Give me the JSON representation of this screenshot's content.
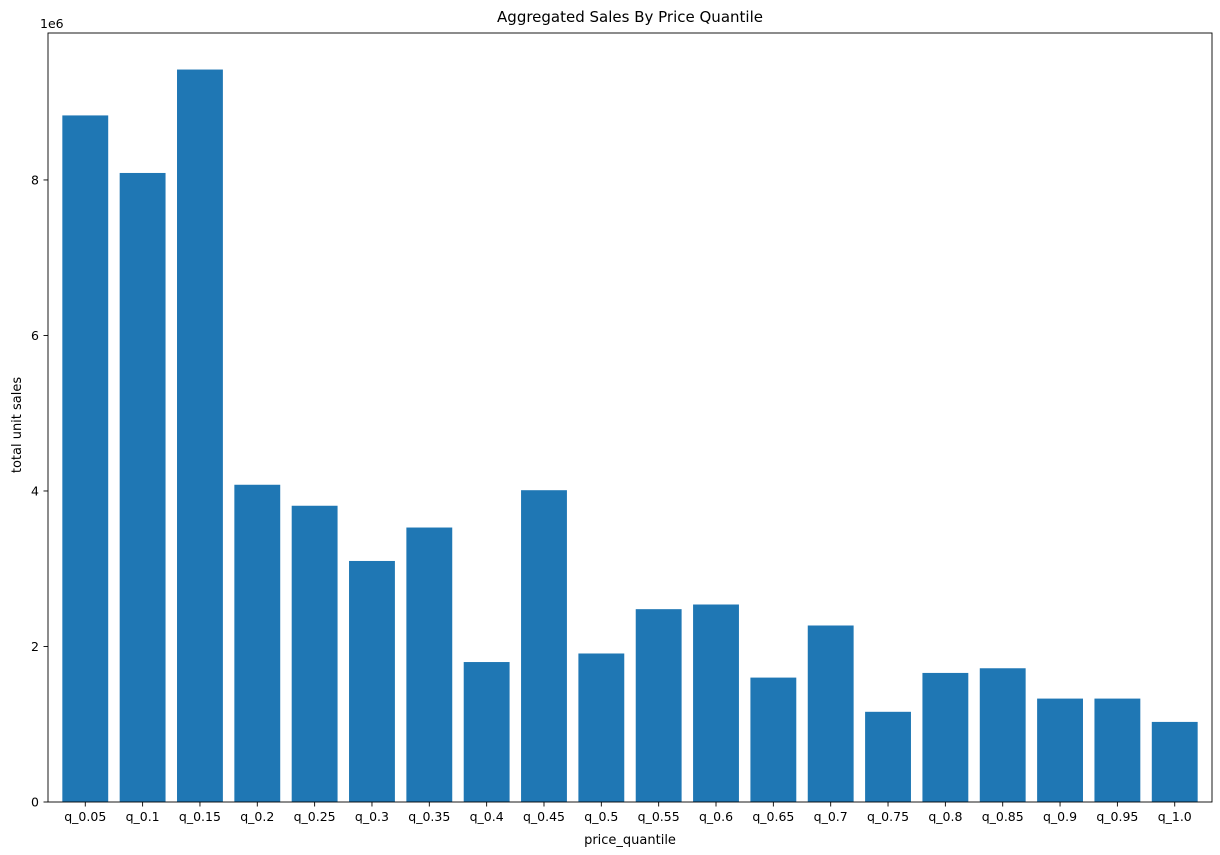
{
  "chart_data": {
    "type": "bar",
    "title": "Aggregated Sales By Price Quantile",
    "xlabel": "price_quantile",
    "ylabel": "total unit sales",
    "y_offset_label": "1e6",
    "categories": [
      "q_0.05",
      "q_0.1",
      "q_0.15",
      "q_0.2",
      "q_0.25",
      "q_0.3",
      "q_0.35",
      "q_0.4",
      "q_0.45",
      "q_0.5",
      "q_0.55",
      "q_0.6",
      "q_0.65",
      "q_0.7",
      "q_0.75",
      "q_0.8",
      "q_0.85",
      "q_0.9",
      "q_0.95",
      "q_1.0"
    ],
    "values": [
      8830000,
      8090000,
      9420000,
      4080000,
      3810000,
      3100000,
      3530000,
      1800000,
      4010000,
      1910000,
      2480000,
      2540000,
      1600000,
      2270000,
      1160000,
      1660000,
      1720000,
      1330000,
      1330000,
      1030000
    ],
    "y_ticks": [
      0,
      2,
      4,
      6,
      8
    ],
    "y_tick_scale": 1000000,
    "ylim": [
      0,
      9890000
    ],
    "bar_color": "#1f77b4",
    "grid": false,
    "legend": "none"
  }
}
